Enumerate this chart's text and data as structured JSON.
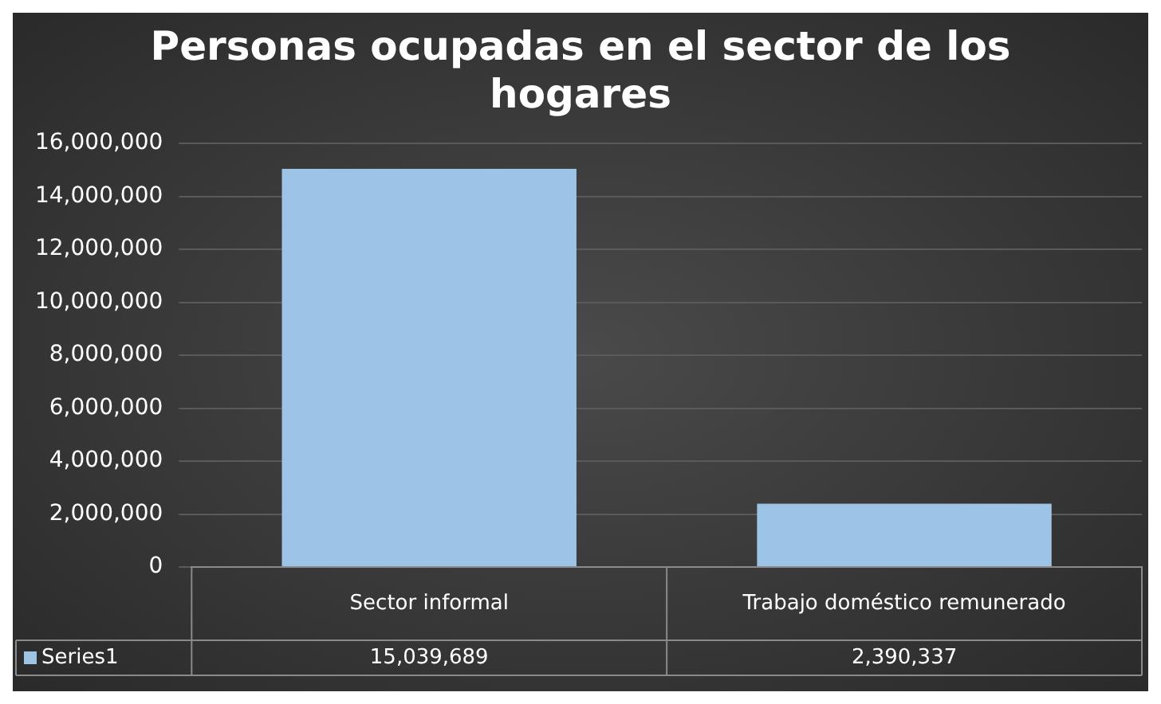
{
  "chart_data": {
    "type": "bar",
    "title": "Personas ocupadas en el sector de los hogares",
    "categories": [
      "Sector informal",
      "Trabajo doméstico remunerado"
    ],
    "series": [
      {
        "name": "Series1",
        "color": "#9dc3e6",
        "values": [
          15039689,
          2390337
        ],
        "value_labels": [
          "15,039,689",
          "2,390,337"
        ]
      }
    ],
    "ylim": [
      0,
      16000000
    ],
    "yticks": [
      {
        "value": 0,
        "label": "0"
      },
      {
        "value": 2000000,
        "label": "2,000,000"
      },
      {
        "value": 4000000,
        "label": "4,000,000"
      },
      {
        "value": 6000000,
        "label": "6,000,000"
      },
      {
        "value": 8000000,
        "label": "8,000,000"
      },
      {
        "value": 10000000,
        "label": "10,000,000"
      },
      {
        "value": 12000000,
        "label": "12,000,000"
      },
      {
        "value": 14000000,
        "label": "14,000,000"
      },
      {
        "value": 16000000,
        "label": "16,000,000"
      }
    ],
    "grid": "y",
    "legend": "bottom"
  }
}
